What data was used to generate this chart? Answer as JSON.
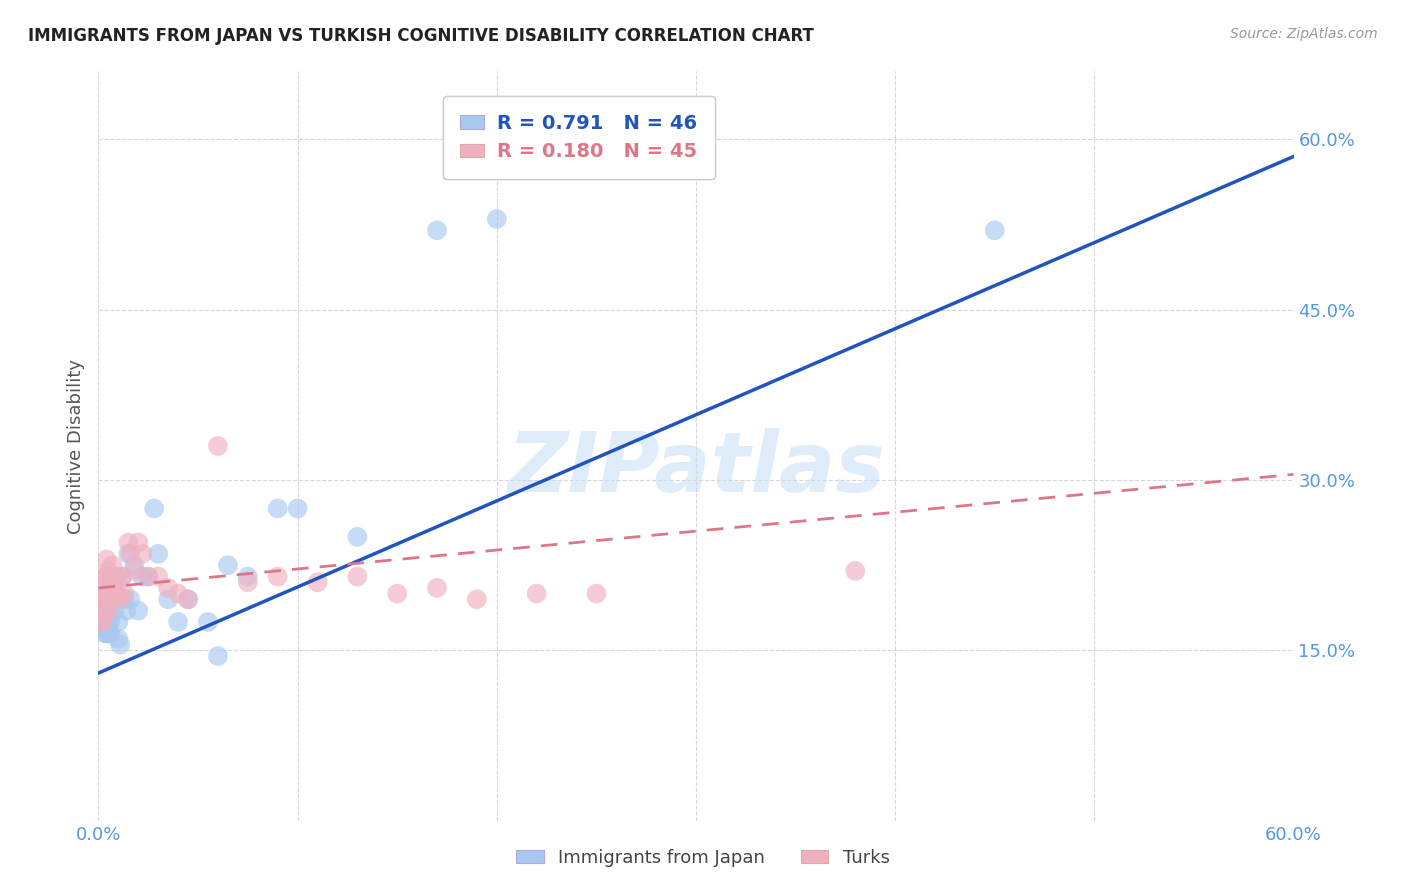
{
  "title": "IMMIGRANTS FROM JAPAN VS TURKISH COGNITIVE DISABILITY CORRELATION CHART",
  "source": "Source: ZipAtlas.com",
  "tick_color": "#5599dd",
  "ylabel": "Cognitive Disability",
  "xlim": [
    0.0,
    0.6
  ],
  "ylim": [
    0.0,
    0.66
  ],
  "xticks": [
    0.0,
    0.1,
    0.2,
    0.3,
    0.4,
    0.5,
    0.6
  ],
  "xtick_labels": [
    "0.0%",
    "",
    "",
    "",
    "",
    "",
    "60.0%"
  ],
  "yticks": [
    0.15,
    0.3,
    0.45,
    0.6
  ],
  "ytick_labels": [
    "15.0%",
    "30.0%",
    "45.0%",
    "60.0%"
  ],
  "r1": 0.791,
  "n1": 46,
  "r2": 0.18,
  "n2": 45,
  "legend_label1": "Immigrants from Japan",
  "legend_label2": "Turks",
  "color_japan": "#a8c8f0",
  "color_turks": "#f0b0c0",
  "line_color_japan": "#2255bb",
  "line_color_turks": "#dd7788",
  "watermark": "ZIPatlas",
  "japan_x": [
    0.001,
    0.002,
    0.002,
    0.003,
    0.003,
    0.003,
    0.004,
    0.004,
    0.004,
    0.005,
    0.005,
    0.005,
    0.006,
    0.006,
    0.007,
    0.007,
    0.008,
    0.008,
    0.009,
    0.01,
    0.01,
    0.011,
    0.012,
    0.013,
    0.014,
    0.015,
    0.016,
    0.018,
    0.02,
    0.022,
    0.025,
    0.028,
    0.03,
    0.035,
    0.04,
    0.045,
    0.055,
    0.065,
    0.075,
    0.09,
    0.1,
    0.13,
    0.17,
    0.2,
    0.45,
    0.06
  ],
  "japan_y": [
    0.205,
    0.185,
    0.175,
    0.195,
    0.175,
    0.165,
    0.18,
    0.165,
    0.195,
    0.175,
    0.165,
    0.185,
    0.175,
    0.165,
    0.215,
    0.195,
    0.185,
    0.205,
    0.195,
    0.175,
    0.16,
    0.155,
    0.215,
    0.195,
    0.185,
    0.235,
    0.195,
    0.225,
    0.185,
    0.215,
    0.215,
    0.275,
    0.235,
    0.195,
    0.175,
    0.195,
    0.175,
    0.225,
    0.215,
    0.275,
    0.275,
    0.25,
    0.52,
    0.53,
    0.52,
    0.145
  ],
  "turks_x": [
    0.001,
    0.001,
    0.002,
    0.002,
    0.003,
    0.003,
    0.003,
    0.004,
    0.004,
    0.004,
    0.005,
    0.005,
    0.005,
    0.006,
    0.006,
    0.007,
    0.007,
    0.008,
    0.008,
    0.009,
    0.01,
    0.011,
    0.012,
    0.013,
    0.015,
    0.016,
    0.018,
    0.02,
    0.022,
    0.025,
    0.03,
    0.035,
    0.04,
    0.045,
    0.06,
    0.075,
    0.09,
    0.11,
    0.13,
    0.15,
    0.17,
    0.19,
    0.22,
    0.25,
    0.38
  ],
  "turks_y": [
    0.195,
    0.175,
    0.175,
    0.195,
    0.185,
    0.2,
    0.215,
    0.195,
    0.215,
    0.23,
    0.185,
    0.2,
    0.22,
    0.195,
    0.21,
    0.2,
    0.225,
    0.215,
    0.2,
    0.215,
    0.2,
    0.195,
    0.215,
    0.2,
    0.245,
    0.235,
    0.22,
    0.245,
    0.235,
    0.215,
    0.215,
    0.205,
    0.2,
    0.195,
    0.33,
    0.21,
    0.215,
    0.21,
    0.215,
    0.2,
    0.205,
    0.195,
    0.2,
    0.2,
    0.22
  ],
  "japan_line_x0": 0.0,
  "japan_line_y0": 0.13,
  "japan_line_x1": 0.6,
  "japan_line_y1": 0.585,
  "turks_line_x0": 0.0,
  "turks_line_y0": 0.205,
  "turks_line_x1": 0.6,
  "turks_line_y1": 0.305
}
